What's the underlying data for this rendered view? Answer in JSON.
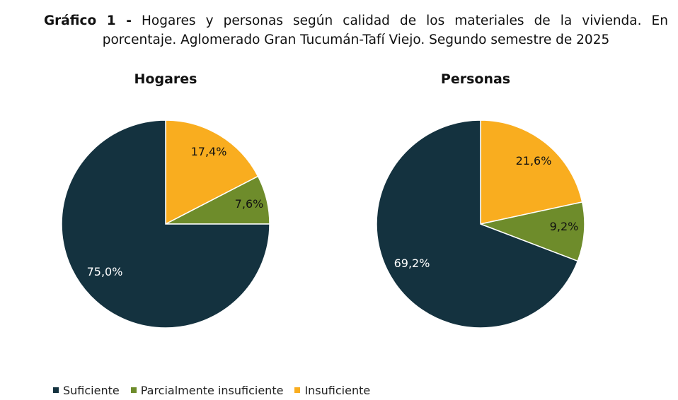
{
  "header": {
    "prefix": "Gráfico 1 -",
    "line1": "Hogares y personas según calidad de los materiales de la vivienda. En",
    "line2": "porcentaje. Aglomerado Gran Tucumán-Tafí Viejo. Segundo semestre de 2025"
  },
  "colors": {
    "Suficiente": "#14323f",
    "Parcialmente insuficiente": "#6e8c2b",
    "Insuficiente": "#f9ad1f"
  },
  "chart_data": [
    {
      "type": "pie",
      "title": "Hogares",
      "categories": [
        "Insuficiente",
        "Parcialmente insuficiente",
        "Suficiente"
      ],
      "values": [
        17.4,
        7.6,
        75.0
      ],
      "labels": [
        "17,4%",
        "7,6%",
        "75,0%"
      ]
    },
    {
      "type": "pie",
      "title": "Personas",
      "categories": [
        "Insuficiente",
        "Parcialmente insuficiente",
        "Suficiente"
      ],
      "values": [
        21.6,
        9.2,
        69.2
      ],
      "labels": [
        "21,6%",
        "9,2%",
        "69,2%"
      ]
    }
  ],
  "legend": {
    "placement": "bottom-left",
    "items": [
      "Suficiente",
      "Parcialmente insuficiente",
      "Insuficiente"
    ]
  }
}
